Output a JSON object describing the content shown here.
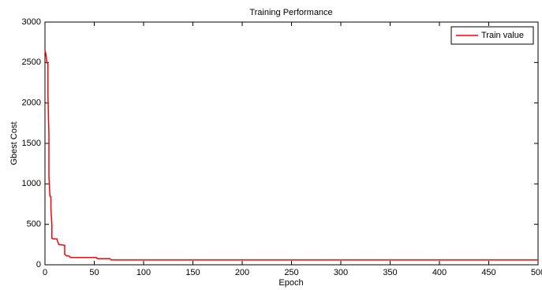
{
  "chart_data": {
    "type": "line",
    "title": "Training Performance",
    "x_label": "Epoch",
    "y_label": "Gbest Cost",
    "x": [
      0,
      1,
      2,
      3,
      3,
      4,
      4,
      5,
      6,
      6,
      7,
      7,
      8,
      12,
      14,
      18,
      20,
      20,
      22,
      24,
      26,
      52,
      53,
      66,
      67,
      500
    ],
    "series": [
      {
        "name": "Train value",
        "color": "#ff0000",
        "values": [
          2650,
          2600,
          2500,
          2480,
          2100,
          1600,
          1100,
          850,
          840,
          700,
          500,
          330,
          320,
          320,
          250,
          245,
          240,
          130,
          110,
          110,
          90,
          90,
          75,
          75,
          60,
          60
        ]
      }
    ],
    "xlim": [
      0,
      500
    ],
    "xticks": [
      0,
      50,
      100,
      150,
      200,
      250,
      300,
      350,
      400,
      450,
      500
    ],
    "ylim": [
      0,
      3000
    ],
    "yticks": [
      0,
      500,
      1000,
      1500,
      2000,
      2500,
      3000
    ],
    "grid": false,
    "legend": "top-right"
  }
}
